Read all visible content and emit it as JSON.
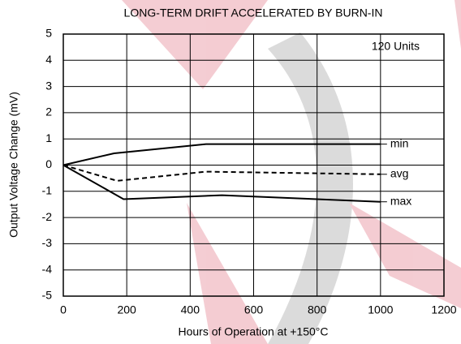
{
  "chart_data": {
    "type": "line",
    "title": "LONG-TERM DRIFT ACCELERATED BY BURN-IN",
    "x_label": "Hours of Operation at +150°C",
    "y_label": "Output Voltage Change (mV)",
    "annotation": "120 Units",
    "series": [
      {
        "name": "min",
        "color": "#000000",
        "dash": false,
        "x": [
          0,
          160,
          450,
          1000
        ],
        "values": [
          0,
          0.45,
          0.8,
          0.8
        ]
      },
      {
        "name": "avg",
        "color": "#000000",
        "dash": true,
        "x": [
          0,
          170,
          450,
          1000
        ],
        "values": [
          0,
          -0.6,
          -0.25,
          -0.35
        ]
      },
      {
        "name": "max",
        "color": "#000000",
        "dash": false,
        "x": [
          0,
          190,
          500,
          1000
        ],
        "values": [
          0,
          -1.3,
          -1.15,
          -1.4
        ]
      }
    ],
    "xlim": [
      0,
      1200
    ],
    "xticks": [
      0,
      200,
      400,
      600,
      800,
      1000,
      1200
    ],
    "ylim": [
      -5,
      5
    ],
    "yticks": [
      -5,
      -4,
      -3,
      -2,
      -1,
      0,
      1,
      2,
      3,
      4,
      5
    ],
    "grid": true
  }
}
